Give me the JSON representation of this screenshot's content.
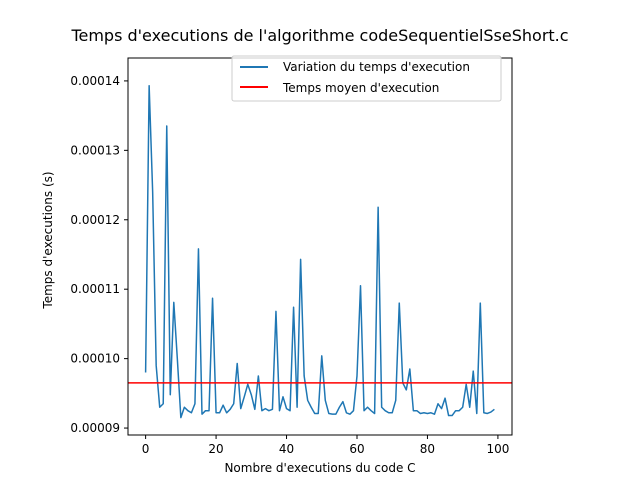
{
  "chart_data": {
    "type": "line",
    "title": "Temps d'executions de l'algorithme codeSequentielSseShort.c",
    "xlabel": "Nombre d'executions du code C",
    "ylabel": "Temps d'executions (s)",
    "xlim": [
      -5,
      104
    ],
    "ylim": [
      8.9e-05,
      0.0001433
    ],
    "x_ticks": [
      0,
      20,
      40,
      60,
      80,
      100
    ],
    "y_ticks": [
      9e-05,
      0.0001,
      0.00011,
      0.00012,
      0.00013,
      0.00014
    ],
    "y_tick_labels": [
      "0.00009",
      "0.00010",
      "0.00011",
      "0.00012",
      "0.00013",
      "0.00014"
    ],
    "x_tick_labels": [
      "0",
      "20",
      "40",
      "60",
      "80",
      "100"
    ],
    "grid": false,
    "legend_position": "top-right",
    "series": [
      {
        "name": "Variation du temps d'execution",
        "color": "#1f77b4",
        "x": [
          0,
          1,
          2,
          3,
          4,
          5,
          6,
          7,
          8,
          9,
          10,
          11,
          12,
          13,
          14,
          15,
          16,
          17,
          18,
          19,
          20,
          21,
          22,
          23,
          24,
          25,
          26,
          27,
          28,
          29,
          30,
          31,
          32,
          33,
          34,
          35,
          36,
          37,
          38,
          39,
          40,
          41,
          42,
          43,
          44,
          45,
          46,
          47,
          48,
          49,
          50,
          51,
          52,
          53,
          54,
          55,
          56,
          57,
          58,
          59,
          60,
          61,
          62,
          63,
          64,
          65,
          66,
          67,
          68,
          69,
          70,
          71,
          72,
          73,
          74,
          75,
          76,
          77,
          78,
          79,
          80,
          81,
          82,
          83,
          84,
          85,
          86,
          87,
          88,
          89,
          90,
          91,
          92,
          93,
          94,
          95,
          96,
          97,
          98,
          99
        ],
        "values": [
          9.8e-05,
          0.0001393,
          0.000124,
          9.9e-05,
          9.3e-05,
          9.35e-05,
          0.0001335,
          9.48e-05,
          0.0001081,
          0.0001,
          9.15e-05,
          9.3e-05,
          9.25e-05,
          9.22e-05,
          9.35e-05,
          0.0001158,
          9.2e-05,
          9.25e-05,
          9.25e-05,
          0.0001087,
          9.22e-05,
          9.22e-05,
          9.33e-05,
          9.22e-05,
          9.27e-05,
          9.35e-05,
          9.93e-05,
          9.28e-05,
          9.45e-05,
          9.63e-05,
          9.48e-05,
          9.27e-05,
          9.75e-05,
          9.25e-05,
          9.28e-05,
          9.25e-05,
          9.27e-05,
          0.0001068,
          9.25e-05,
          9.45e-05,
          9.28e-05,
          9.25e-05,
          0.0001074,
          9.3e-05,
          0.0001143,
          9.75e-05,
          9.4e-05,
          9.3e-05,
          9.21e-05,
          9.21e-05,
          0.0001004,
          9.4e-05,
          9.21e-05,
          9.2e-05,
          9.2e-05,
          9.3e-05,
          9.38e-05,
          9.22e-05,
          9.2e-05,
          9.25e-05,
          9.75e-05,
          0.0001105,
          9.25e-05,
          9.3e-05,
          9.25e-05,
          9.21e-05,
          0.0001218,
          9.3e-05,
          9.25e-05,
          9.22e-05,
          9.22e-05,
          9.4e-05,
          0.000108,
          9.65e-05,
          9.55e-05,
          9.85e-05,
          9.25e-05,
          9.25e-05,
          9.21e-05,
          9.22e-05,
          9.21e-05,
          9.22e-05,
          9.2e-05,
          9.35e-05,
          9.28e-05,
          9.43e-05,
          9.18e-05,
          9.18e-05,
          9.25e-05,
          9.25e-05,
          9.3e-05,
          9.63e-05,
          9.3e-05,
          9.82e-05,
          9.21e-05,
          0.000108,
          9.22e-05,
          9.21e-05,
          9.23e-05,
          9.27e-05
        ]
      },
      {
        "name": "Temps moyen d'execution",
        "color": "#ff0000",
        "type": "hline",
        "y": 9.65e-05
      }
    ]
  }
}
